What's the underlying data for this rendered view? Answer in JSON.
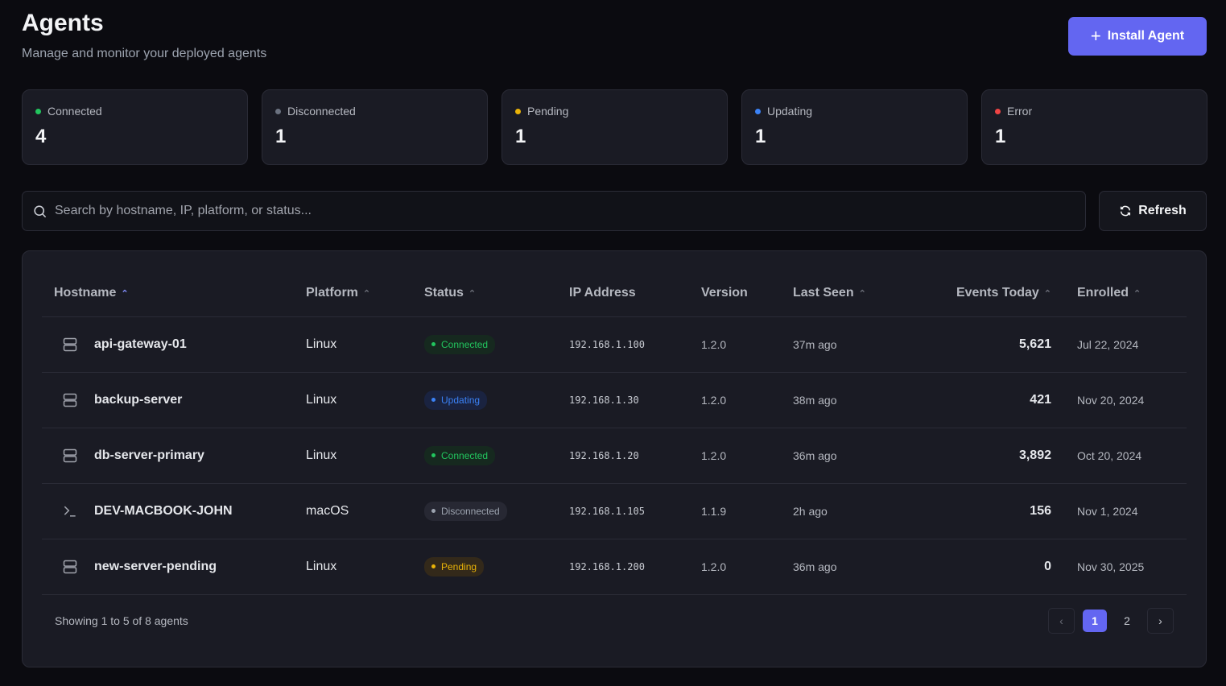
{
  "header": {
    "title": "Agents",
    "subtitle": "Manage and monitor your deployed agents",
    "install_label": "Install Agent"
  },
  "colors": {
    "accent": "#6366f1",
    "connected": "#22c55e",
    "disconnected": "#6b7280",
    "pending": "#eab308",
    "updating": "#3b82f6",
    "error": "#ef4444"
  },
  "stats": [
    {
      "label": "Connected",
      "value": "4",
      "color": "#22c55e"
    },
    {
      "label": "Disconnected",
      "value": "1",
      "color": "#6b7280"
    },
    {
      "label": "Pending",
      "value": "1",
      "color": "#eab308"
    },
    {
      "label": "Updating",
      "value": "1",
      "color": "#3b82f6"
    },
    {
      "label": "Error",
      "value": "1",
      "color": "#ef4444"
    }
  ],
  "search": {
    "placeholder": "Search by hostname, IP, platform, or status...",
    "value": ""
  },
  "refresh_label": "Refresh",
  "table": {
    "columns": [
      "Hostname",
      "Platform",
      "Status",
      "IP Address",
      "Version",
      "Last Seen",
      "Events Today",
      "Enrolled"
    ],
    "rows": [
      {
        "icon": "server-icon",
        "hostname": "api-gateway-01",
        "platform": "Linux",
        "status": "Connected",
        "ip": "192.168.1.100",
        "version": "1.2.0",
        "last_seen": "37m ago",
        "events": "5,621",
        "enrolled": "Jul 22, 2024"
      },
      {
        "icon": "server-icon",
        "hostname": "backup-server",
        "platform": "Linux",
        "status": "Updating",
        "ip": "192.168.1.30",
        "version": "1.2.0",
        "last_seen": "38m ago",
        "events": "421",
        "enrolled": "Nov 20, 2024"
      },
      {
        "icon": "server-icon",
        "hostname": "db-server-primary",
        "platform": "Linux",
        "status": "Connected",
        "ip": "192.168.1.20",
        "version": "1.2.0",
        "last_seen": "36m ago",
        "events": "3,892",
        "enrolled": "Oct 20, 2024"
      },
      {
        "icon": "terminal-icon",
        "hostname": "DEV-MACBOOK-JOHN",
        "platform": "macOS",
        "status": "Disconnected",
        "ip": "192.168.1.105",
        "version": "1.1.9",
        "last_seen": "2h ago",
        "events": "156",
        "enrolled": "Nov 1, 2024"
      },
      {
        "icon": "server-icon",
        "hostname": "new-server-pending",
        "platform": "Linux",
        "status": "Pending",
        "ip": "192.168.1.200",
        "version": "1.2.0",
        "last_seen": "36m ago",
        "events": "0",
        "enrolled": "Nov 30, 2025"
      }
    ]
  },
  "footer": {
    "showing": "Showing 1 to 5 of 8 agents",
    "pages": [
      "1",
      "2"
    ],
    "current_page": "1"
  }
}
